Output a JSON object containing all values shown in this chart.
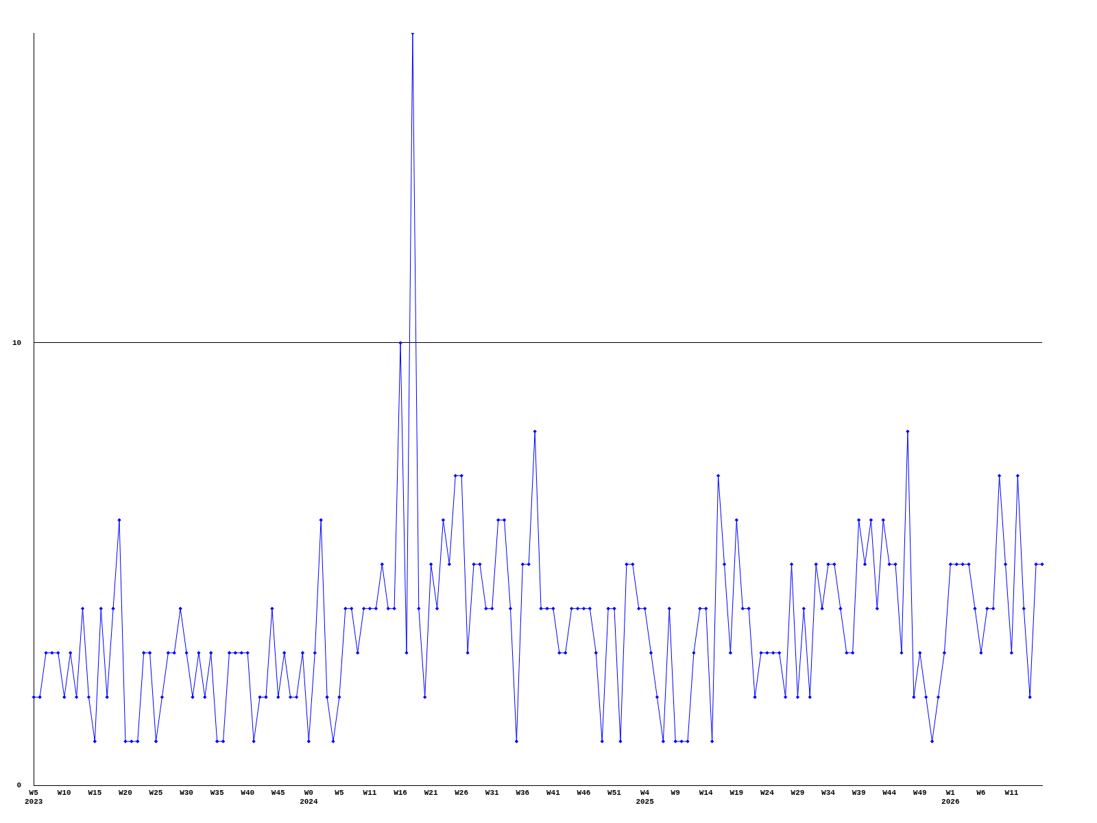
{
  "chart_data": {
    "type": "line",
    "categories": [
      "W5\n2023",
      null,
      null,
      null,
      null,
      "W10",
      null,
      null,
      null,
      null,
      "W15",
      null,
      null,
      null,
      null,
      "W20",
      null,
      null,
      null,
      null,
      "W25",
      null,
      null,
      null,
      null,
      "W30",
      null,
      null,
      null,
      null,
      "W35",
      null,
      null,
      null,
      null,
      "W40",
      null,
      null,
      null,
      null,
      "W45",
      null,
      null,
      null,
      null,
      "W0\n2024",
      null,
      null,
      null,
      null,
      "W5",
      null,
      null,
      null,
      null,
      "W11",
      null,
      null,
      null,
      null,
      "W16",
      null,
      null,
      null,
      null,
      "W21",
      null,
      null,
      null,
      null,
      "W26",
      null,
      null,
      null,
      null,
      "W31",
      null,
      null,
      null,
      null,
      "W36",
      null,
      null,
      null,
      null,
      "W41",
      null,
      null,
      null,
      null,
      "W46",
      null,
      null,
      null,
      null,
      "W51",
      null,
      null,
      null,
      null,
      "W4\n2025",
      null,
      null,
      null,
      null,
      "W9",
      null,
      null,
      null,
      null,
      "W14",
      null,
      null,
      null,
      null,
      "W19",
      null,
      null,
      null,
      null,
      "W24",
      null,
      null,
      null,
      null,
      "W29",
      null,
      null,
      null,
      null,
      "W34",
      null,
      null,
      null,
      null,
      "W39",
      null,
      null,
      null,
      null,
      "W44",
      null,
      null,
      null,
      null,
      "W49",
      null,
      null,
      null,
      null,
      "W1\n2026",
      null,
      null,
      null,
      null,
      "W6",
      null,
      null,
      null,
      null,
      "W11",
      null,
      null,
      null,
      null,
      null
    ],
    "series": [
      {
        "color": "#0000ff",
        "values": [
          2,
          2,
          3,
          3,
          3,
          2,
          3,
          2,
          4,
          2,
          1,
          4,
          2,
          4,
          6,
          1,
          1,
          1,
          3,
          3,
          1,
          2,
          3,
          3,
          4,
          3,
          2,
          3,
          2,
          3,
          1,
          1,
          3,
          3,
          3,
          3,
          1,
          2,
          2,
          4,
          2,
          3,
          2,
          2,
          3,
          1,
          3,
          6,
          2,
          1,
          2,
          4,
          4,
          3,
          4,
          4,
          4,
          5,
          4,
          4,
          10,
          3,
          17,
          4,
          2,
          5,
          4,
          6,
          5,
          7,
          7,
          3,
          5,
          5,
          4,
          4,
          6,
          6,
          4,
          1,
          5,
          5,
          8,
          4,
          4,
          4,
          3,
          3,
          4,
          4,
          4,
          4,
          3,
          1,
          4,
          4,
          1,
          5,
          5,
          4,
          4,
          3,
          2,
          1,
          4,
          1,
          1,
          1,
          3,
          4,
          4,
          1,
          7,
          5,
          3,
          6,
          4,
          4,
          2,
          3,
          3,
          3,
          3,
          2,
          5,
          2,
          4,
          2,
          5,
          4,
          5,
          5,
          4,
          3,
          3,
          6,
          5,
          6,
          4,
          6,
          5,
          5,
          3,
          8,
          2,
          3,
          2,
          1,
          2,
          3,
          5,
          5,
          5,
          5,
          4,
          3,
          4,
          4,
          7,
          5,
          3,
          7,
          4,
          2,
          5,
          5
        ]
      }
    ],
    "ylim": [
      0,
      17
    ],
    "yticks": [
      0,
      10
    ],
    "grid": "y",
    "marker": "diamond",
    "legend": false
  }
}
